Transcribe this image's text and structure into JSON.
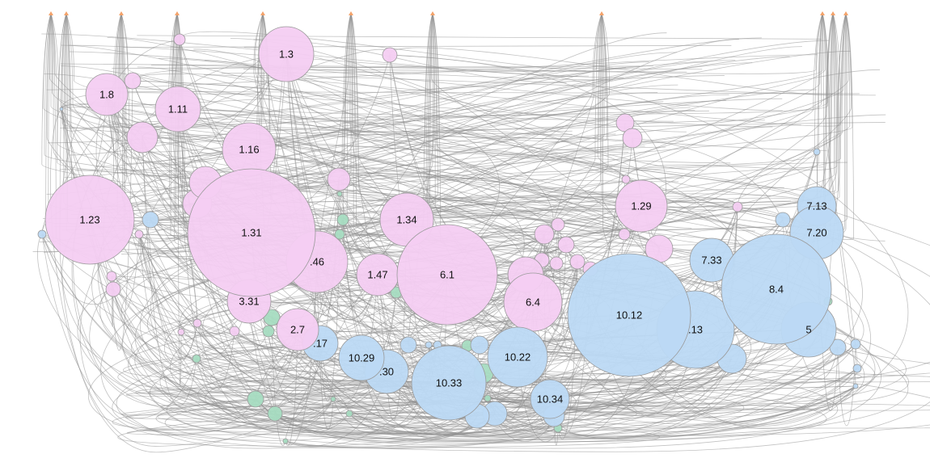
{
  "colors": {
    "pink": "#f4cdf2",
    "blue": "#bcd9f4",
    "green": "#a7dcc1",
    "edge": "#8f8f8f",
    "source": "#f4a36b"
  },
  "labels": {
    "n_1_3": "1.3",
    "n_1_8": "1.8",
    "n_1_11": "1.11",
    "n_1_16": "1.16",
    "n_1_23": "1.23",
    "n_1_31": "1.31",
    "n_1_34": "1.34",
    "n_1_29": "1.29",
    "n_46": ".46",
    "n_1_47": "1.47",
    "n_6_1": "6.1",
    "n_6_4": "6.4",
    "n_3_31": "3.31",
    "n_2_7": "2.7",
    "n_17": ".17",
    "n_10_29": "10.29",
    "n_30": ".30",
    "n_10_33": "10.33",
    "n_10_22": "10.22",
    "n_10_34": "10.34",
    "n_10_12": "10.12",
    "n_13": ".13",
    "n_7_33": "7.33",
    "n_8_4": "8.4",
    "n_7_13": "7.13",
    "n_7_20": "7.20",
    "n_5": "5"
  }
}
